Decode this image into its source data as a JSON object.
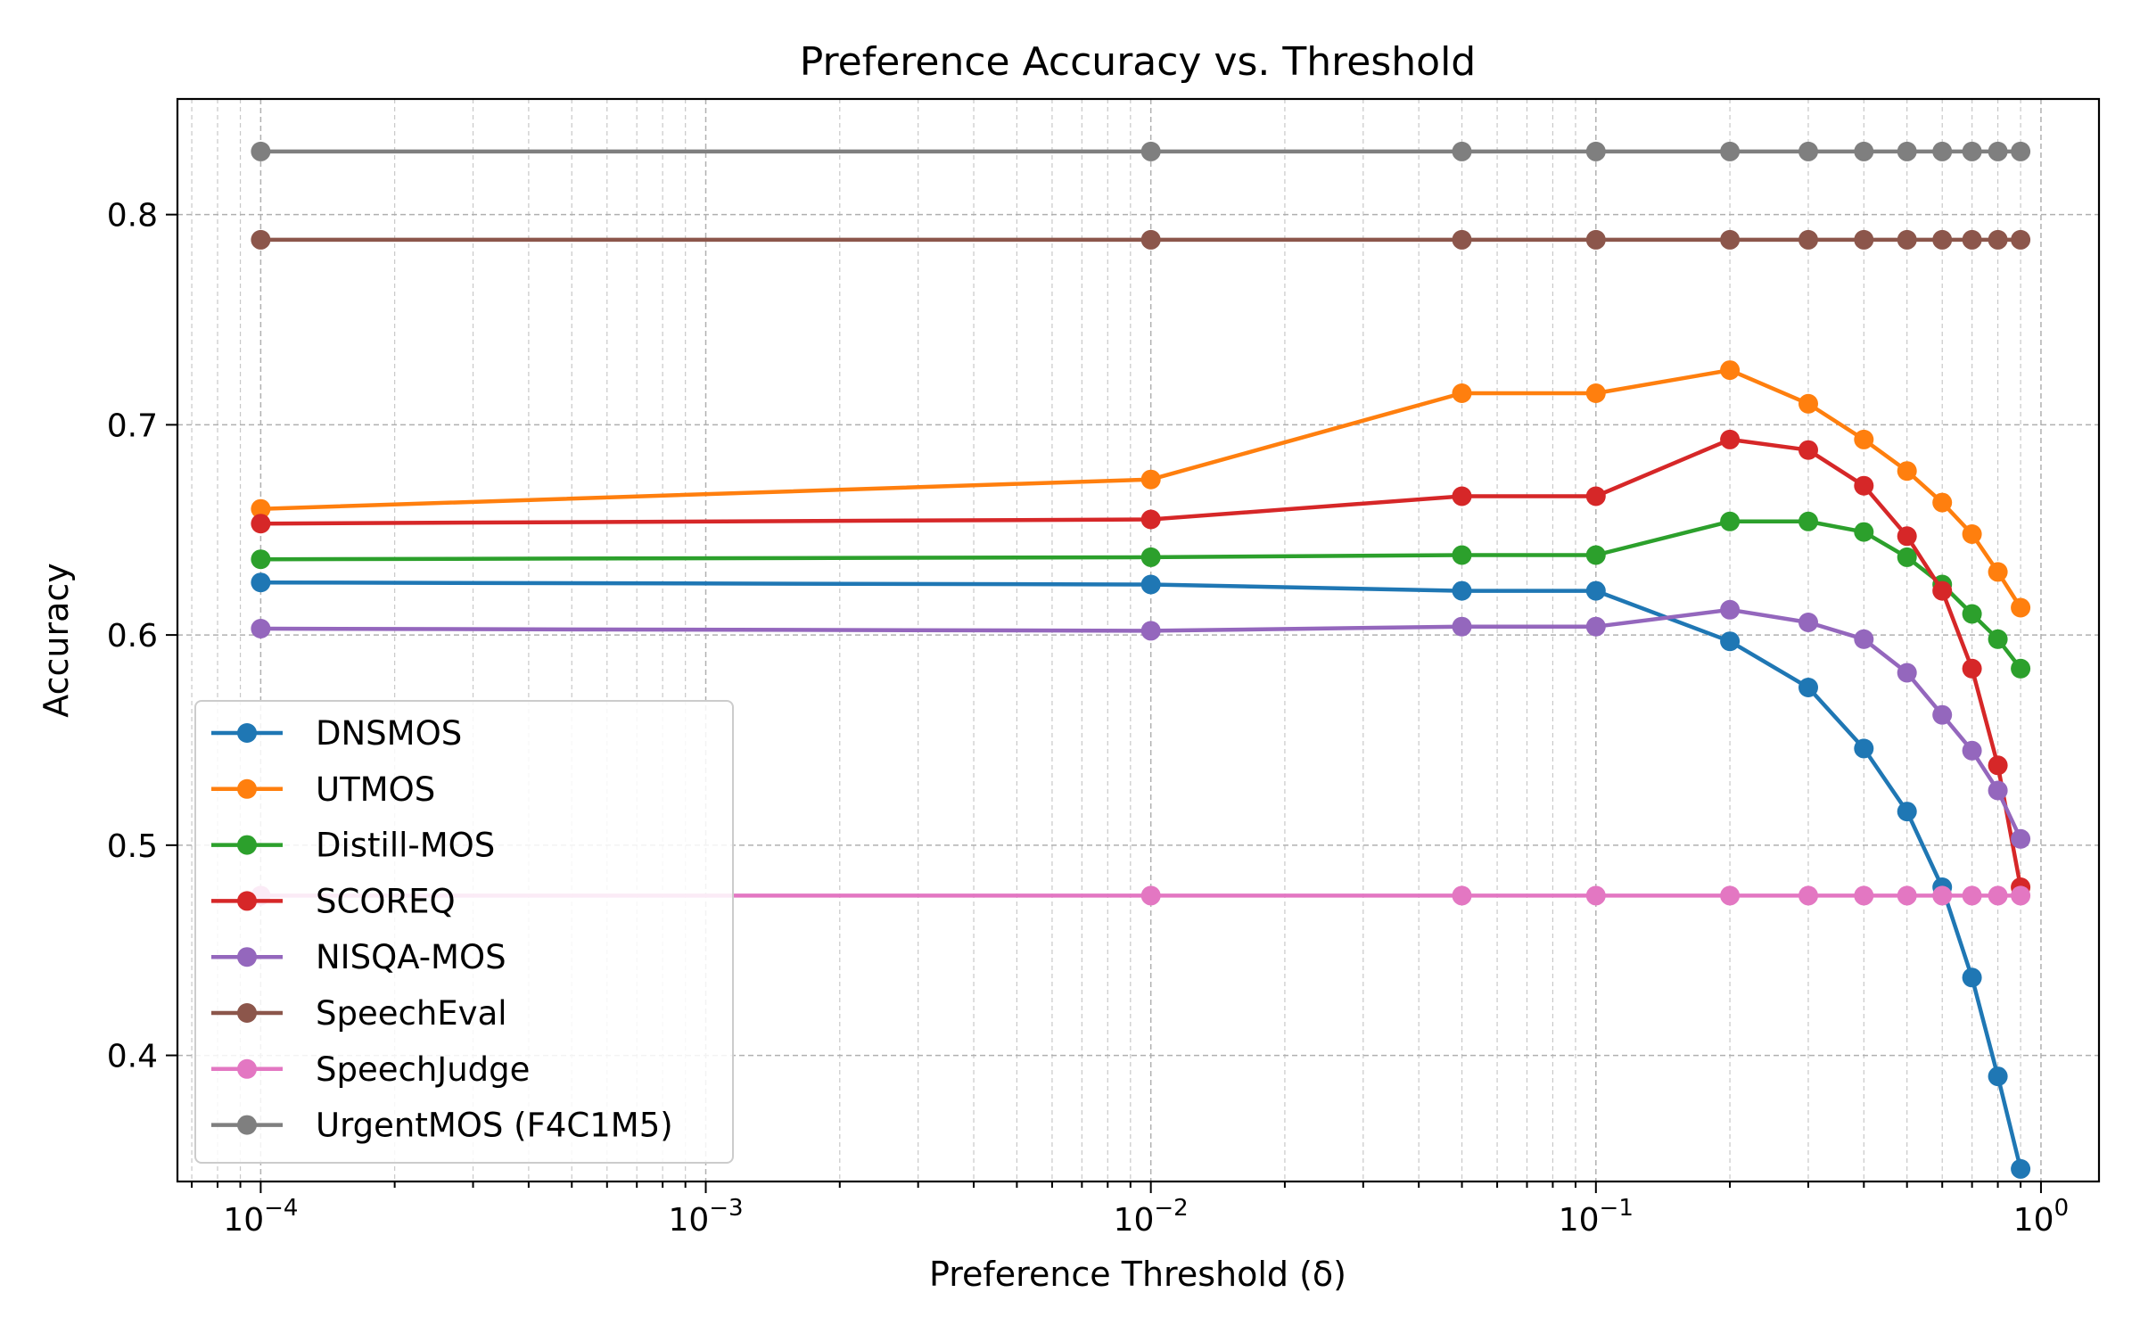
{
  "chart_data": {
    "type": "line",
    "title": "Preference Accuracy vs. Threshold",
    "xlabel": "Preference Threshold (δ)",
    "ylabel": "Accuracy",
    "xscale": "log",
    "xlim": [
      6.5e-05,
      1.35
    ],
    "ylim": [
      0.34,
      0.855
    ],
    "grid": true,
    "legend_position": "lower-left",
    "x": [
      0.0001,
      0.01,
      0.05,
      0.1,
      0.2,
      0.3,
      0.4,
      0.5,
      0.6,
      0.7,
      0.8,
      0.9
    ],
    "x_ticks": [
      {
        "value": 0.0001,
        "base": "10",
        "exp": "−4"
      },
      {
        "value": 0.001,
        "base": "10",
        "exp": "−3"
      },
      {
        "value": 0.01,
        "base": "10",
        "exp": "−2"
      },
      {
        "value": 0.1,
        "base": "10",
        "exp": "−1"
      },
      {
        "value": 1,
        "base": "10",
        "exp": "0"
      }
    ],
    "y_ticks": [
      {
        "value": 0.4,
        "label": "0.4"
      },
      {
        "value": 0.5,
        "label": "0.5"
      },
      {
        "value": 0.6,
        "label": "0.6"
      },
      {
        "value": 0.7,
        "label": "0.7"
      },
      {
        "value": 0.8,
        "label": "0.8"
      }
    ],
    "series": [
      {
        "name": "DNSMOS",
        "color": "#1f77b4",
        "values": [
          0.625,
          0.624,
          0.621,
          0.621,
          0.597,
          0.575,
          0.546,
          0.516,
          0.48,
          0.437,
          0.39,
          0.346
        ]
      },
      {
        "name": "UTMOS",
        "color": "#ff7f0e",
        "values": [
          0.66,
          0.674,
          0.715,
          0.715,
          0.726,
          0.71,
          0.693,
          0.678,
          0.663,
          0.648,
          0.63,
          0.613
        ]
      },
      {
        "name": "Distill-MOS",
        "color": "#2ca02c",
        "values": [
          0.636,
          0.637,
          0.638,
          0.638,
          0.654,
          0.654,
          0.649,
          0.637,
          0.624,
          0.61,
          0.598,
          0.584
        ]
      },
      {
        "name": "SCOREQ",
        "color": "#d62728",
        "values": [
          0.653,
          0.655,
          0.666,
          0.666,
          0.693,
          0.688,
          0.671,
          0.647,
          0.621,
          0.584,
          0.538,
          0.48
        ]
      },
      {
        "name": "NISQA-MOS",
        "color": "#9467bd",
        "values": [
          0.603,
          0.602,
          0.604,
          0.604,
          0.612,
          0.606,
          0.598,
          0.582,
          0.562,
          0.545,
          0.526,
          0.503
        ]
      },
      {
        "name": "SpeechEval",
        "color": "#8c564b",
        "values": [
          0.788,
          0.788,
          0.788,
          0.788,
          0.788,
          0.788,
          0.788,
          0.788,
          0.788,
          0.788,
          0.788,
          0.788
        ]
      },
      {
        "name": "SpeechJudge",
        "color": "#e377c2",
        "values": [
          0.476,
          0.476,
          0.476,
          0.476,
          0.476,
          0.476,
          0.476,
          0.476,
          0.476,
          0.476,
          0.476,
          0.476
        ]
      },
      {
        "name": "UrgentMOS (F4C1M5)",
        "color": "#7f7f7f",
        "values": [
          0.83,
          0.83,
          0.83,
          0.83,
          0.83,
          0.83,
          0.83,
          0.83,
          0.83,
          0.83,
          0.83,
          0.83
        ]
      }
    ]
  }
}
